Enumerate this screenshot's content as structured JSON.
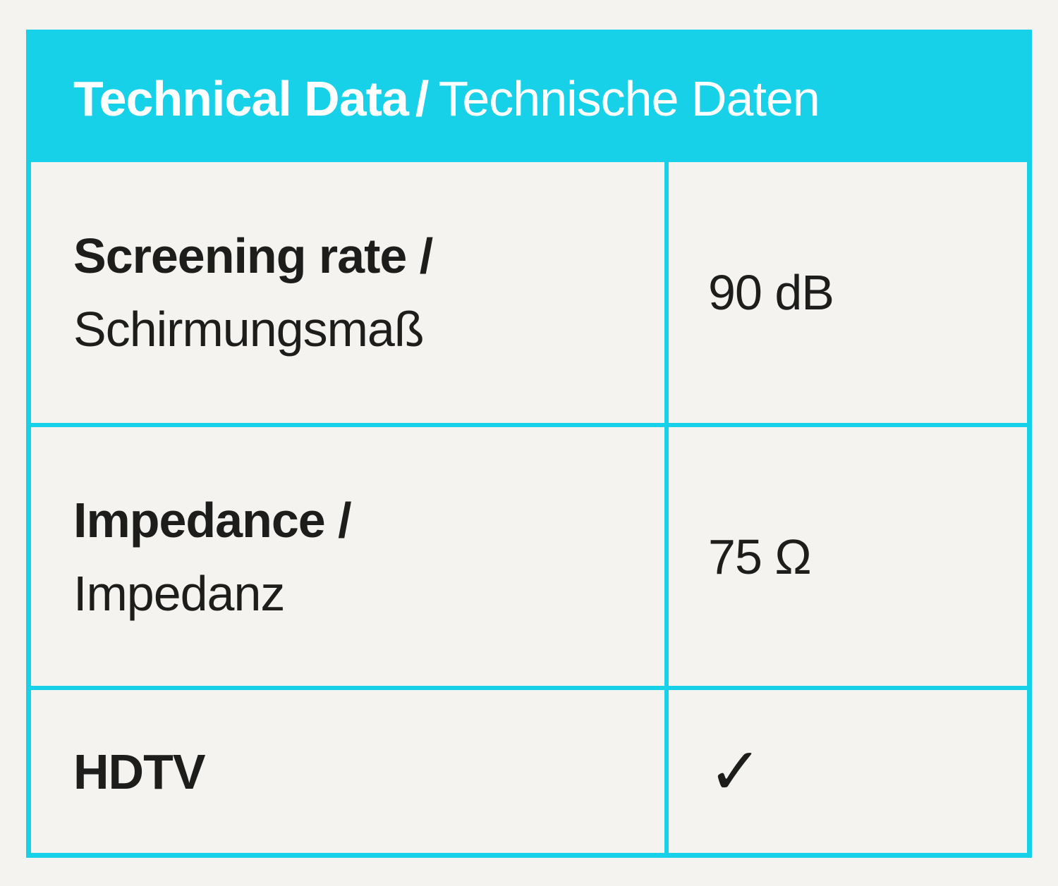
{
  "table": {
    "accent_color": "#17d1e8",
    "background_color": "#f4f3f0",
    "header": {
      "title_en": "Technical Data",
      "separator": "/",
      "title_de": "Technische Daten"
    },
    "rows": [
      {
        "label_en": "Screening rate /",
        "label_de": "Schirmungsmaß",
        "value": "90 dB"
      },
      {
        "label_en": "Impedance /",
        "label_de": "Impedanz",
        "value": "75 Ω"
      },
      {
        "label_en": "HDTV",
        "label_de": "",
        "value": "✓"
      }
    ]
  }
}
